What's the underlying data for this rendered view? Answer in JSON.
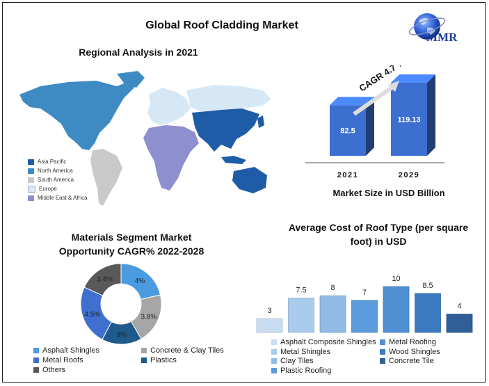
{
  "header": {
    "title": "Global Roof Cladding Market",
    "logo_text": "MMR"
  },
  "regional": {
    "title": "Regional Analysis in 2021",
    "legend": [
      {
        "label": "Asia Pacific",
        "color": "#1f5ca8"
      },
      {
        "label": "North America",
        "color": "#3e8bc4"
      },
      {
        "label": "South America",
        "color": "#c9c9c9"
      },
      {
        "label": "Europe",
        "color": "#d6e8f5"
      },
      {
        "label": "Middle East & Africa",
        "color": "#8e8fcf"
      }
    ]
  },
  "market": {
    "caption": "Market Size in USD Billion",
    "cagr_label": "CAGR 4.7 %"
  },
  "materials": {
    "title_line1": "Materials Segment Market",
    "title_line2": "Opportunity CAGR%  2022-2028"
  },
  "cost": {
    "title_line1": "Average Cost of Roof Type (per square",
    "title_line2": "foot) in USD"
  },
  "chart_data": [
    {
      "type": "bar",
      "title": "",
      "xlabel": "Market Size in USD Billion",
      "categories": [
        "2021",
        "2029"
      ],
      "values": [
        82.5,
        119.13
      ],
      "colors": [
        "#3d6fd0",
        "#3d6fd0"
      ],
      "annotation": "CAGR 4.7 %"
    },
    {
      "type": "pie",
      "title": "Materials Segment Market Opportunity CAGR%  2022-2028",
      "categories": [
        "Asphalt Shingles",
        "Concrete & Clay Tiles",
        "Plastics",
        "Metal Roofs",
        "Others"
      ],
      "values": [
        4,
        3.8,
        3,
        4.5,
        3.4
      ],
      "labels": [
        "4%",
        "3.8%",
        "3%",
        "4.5%",
        "3.4%"
      ],
      "colors": [
        "#4a9be0",
        "#a6a6a6",
        "#1e5a8c",
        "#3f6fcf",
        "#595959"
      ]
    },
    {
      "type": "bar",
      "title": "Average Cost of Roof Type (per square foot) in USD",
      "categories": [
        "Asphalt Composite Shingles",
        "Metal Shingles",
        "Clay Tiles",
        "Plastic Roofing",
        "Metal Roofing",
        "Wood Shingles",
        "Concrete Tile"
      ],
      "values": [
        3,
        7.5,
        8,
        7,
        10,
        8.5,
        4
      ],
      "colors": [
        "#c8ddf2",
        "#a9cbec",
        "#8fbbe6",
        "#5c9bdb",
        "#4f8fd2",
        "#3d7bc0",
        "#2f5f96"
      ],
      "legend_order": [
        "Asphalt Composite Shingles",
        "Metal Roofing",
        "Metal Shingles",
        "Wood Shingles",
        "Clay Tiles",
        "Concrete Tile",
        "Plastic Roofing"
      ]
    }
  ]
}
